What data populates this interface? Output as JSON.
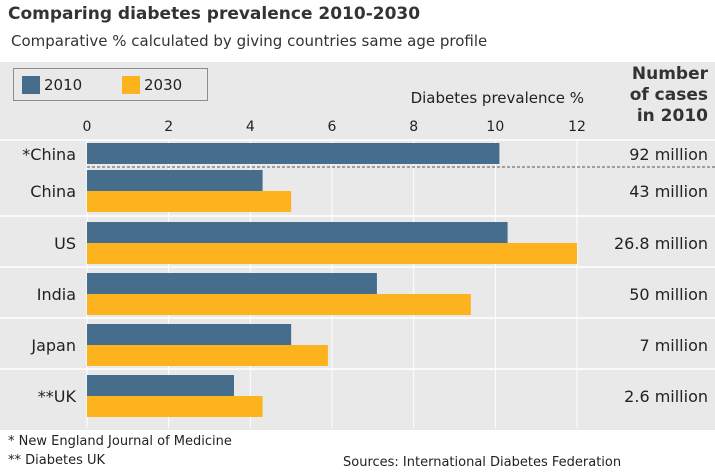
{
  "chart_title": "Comparing diabetes prevalence 2010-2030",
  "chart_subtitle": "Comparative % calculated by giving countries same age profile",
  "cases_header": [
    "Number",
    "of cases",
    "in 2010"
  ],
  "footnotes": [
    "* New England Journal of Medicine",
    "** Diabetes UK"
  ],
  "source": "Sources: International Diabetes Federation",
  "colors": {
    "series_2010": "#476d8c",
    "series_2030": "#fcb31d"
  },
  "chart_data": {
    "type": "bar",
    "orientation": "horizontal",
    "title": "Comparing diabetes prevalence 2010-2030",
    "subtitle": "Comparative % calculated by giving countries same age profile",
    "xlabel": "Diabetes prevalence %",
    "xlim": [
      0,
      12
    ],
    "xticks": [
      0,
      2,
      4,
      6,
      8,
      10,
      12
    ],
    "grid": true,
    "legend_position": "top-left",
    "categories": [
      "*China",
      "China",
      "US",
      "India",
      "Japan",
      "**UK"
    ],
    "series": [
      {
        "name": "2010",
        "values": [
          10.1,
          4.3,
          10.3,
          7.1,
          5.0,
          3.6
        ]
      },
      {
        "name": "2030",
        "values": [
          null,
          5.0,
          12.0,
          9.4,
          5.9,
          4.3
        ]
      }
    ],
    "cases_2010": [
      "92 million",
      "43 million",
      "26.8 million",
      "50 million",
      "7 million",
      "2.6 million"
    ]
  }
}
